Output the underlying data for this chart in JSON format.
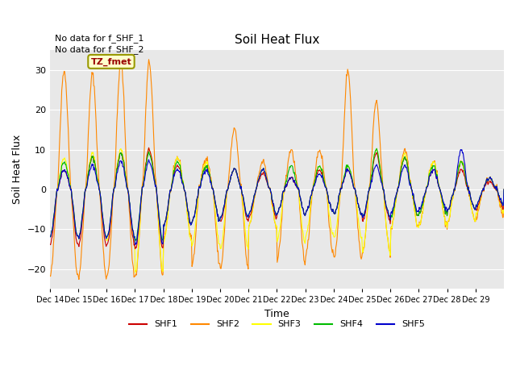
{
  "title": "Soil Heat Flux",
  "ylabel": "Soil Heat Flux",
  "xlabel": "Time",
  "ylim": [
    -25,
    35
  ],
  "background_color": "#e8e8e8",
  "series_colors": {
    "SHF1": "#cc0000",
    "SHF2": "#ff8800",
    "SHF3": "#ffff00",
    "SHF4": "#00bb00",
    "SHF5": "#0000cc"
  },
  "note1": "No data for f_SHF_1",
  "note2": "No data for f_SHF_2",
  "legend_label": "TZ_fmet",
  "x_tick_labels": [
    "Dec 14",
    "Dec 15",
    "Dec 16",
    "Dec 17",
    "Dec 18",
    "Dec 19",
    "Dec 20",
    "Dec 21",
    "Dec 22",
    "Dec 23",
    "Dec 24",
    "Dec 25",
    "Dec 26",
    "Dec 27",
    "Dec 28",
    "Dec 29"
  ],
  "n_points_per_day": 48
}
